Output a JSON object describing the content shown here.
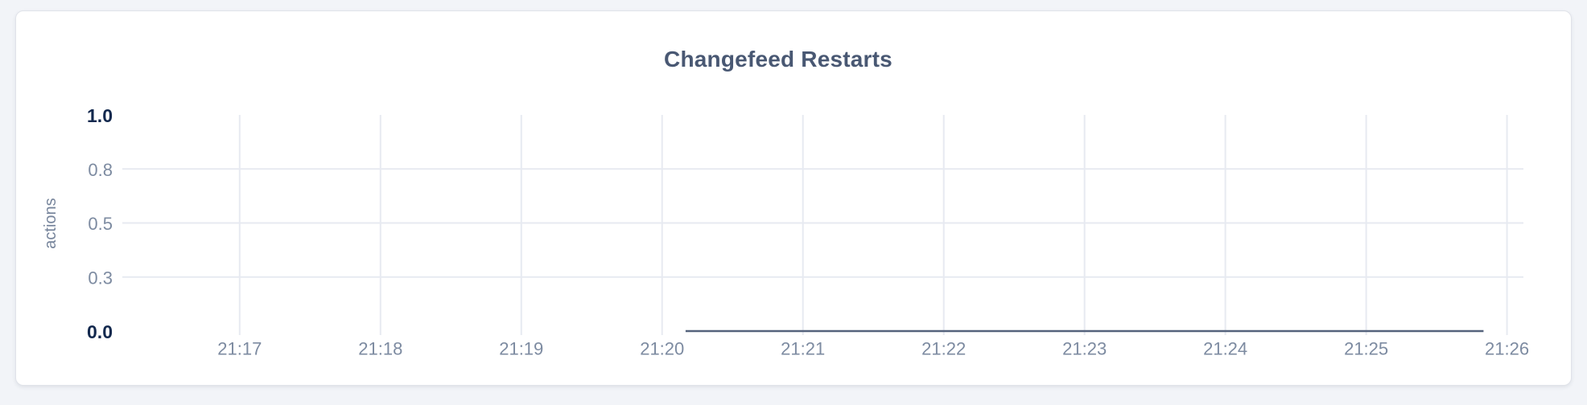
{
  "page": {
    "background_color": "#f2f4f8"
  },
  "card": {
    "background_color": "#ffffff",
    "border_color": "#e0e3e9"
  },
  "chart_data": {
    "type": "line",
    "title": "Changefeed Restarts",
    "xlabel": "",
    "ylabel": "actions",
    "ylim": [
      0,
      1
    ],
    "grid": true,
    "legend": "none",
    "x_ticks": [
      "21:17",
      "21:18",
      "21:19",
      "21:20",
      "21:21",
      "21:22",
      "21:23",
      "21:24",
      "21:25",
      "21:26"
    ],
    "x_domain": [
      "21:16:10",
      "21:26:07"
    ],
    "y_ticks": [
      {
        "value": 0,
        "label": "0.0",
        "emphasized": true
      },
      {
        "value": 0.25,
        "label": "0.3",
        "emphasized": false
      },
      {
        "value": 0.5,
        "label": "0.5",
        "emphasized": false
      },
      {
        "value": 0.75,
        "label": "0.8",
        "emphasized": false
      },
      {
        "value": 1,
        "label": "1.0",
        "emphasized": true
      }
    ],
    "series": [
      {
        "name": "changefeed restarts",
        "points": [
          {
            "time": "21:20:10",
            "value": 0
          },
          {
            "time": "21:25:50",
            "value": 0
          }
        ]
      }
    ],
    "colors": {
      "line": "#55637c",
      "grid": "#e7eaf1",
      "tick_label": "#7d8ba1",
      "tick_label_emphasized": "#13294e",
      "title": "#495873",
      "axis_label": "#76849b"
    }
  }
}
